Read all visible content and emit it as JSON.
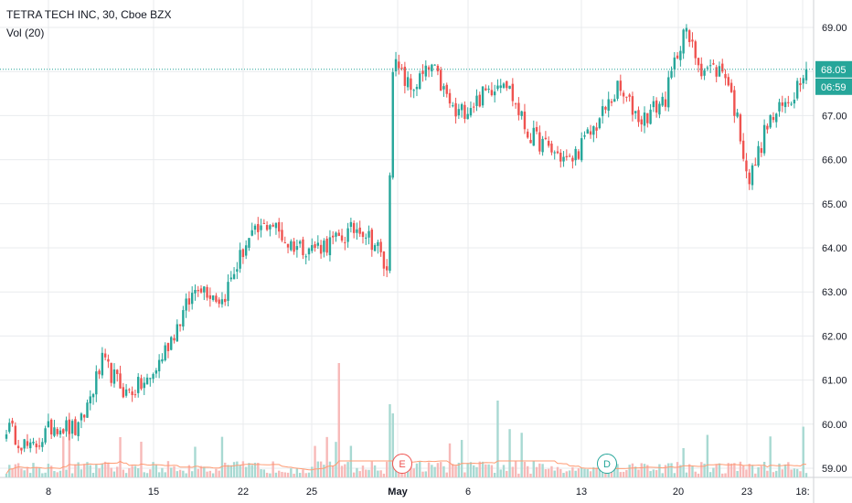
{
  "legend": {
    "title": "TETRA TECH INC, 30, Cboe BZX",
    "vol_label": "Vol (20)"
  },
  "colors": {
    "up": "#26a69a",
    "down": "#ef5350",
    "up_vol": "#a8d9d2",
    "down_vol": "#f7b9b8",
    "vol_ma": "#ff9b73",
    "grid": "#e9ebee",
    "price_line": "#26a69a"
  },
  "price_tag": {
    "price": "68.05",
    "countdown": "06:59"
  },
  "events": [
    {
      "label": "E",
      "x_label": "May",
      "color": "#ef5350"
    },
    {
      "label": "D",
      "x_label": "13",
      "color": "#26a69a"
    }
  ],
  "chart_data": {
    "type": "candlestick",
    "title": "TETRA TECH INC, 30, Cboe BZX",
    "interval": "30",
    "exchange": "Cboe BZX",
    "x_tick_labels": [
      "8",
      "15",
      "22",
      "25",
      "May",
      "6",
      "13",
      "20",
      "23",
      "18:"
    ],
    "y_tick_labels": [
      "59.00",
      "60.00",
      "61.00",
      "62.00",
      "63.00",
      "64.00",
      "65.00",
      "66.00",
      "67.00",
      "68.00",
      "69.00"
    ],
    "ylim": [
      58.8,
      69.2
    ],
    "last_price": 68.05,
    "grid": true,
    "volume_indicator": "Vol (20)",
    "series": [
      {
        "name": "",
        "anchors": [
          {
            "bar": 0,
            "close": 59.95
          },
          {
            "bar": 8,
            "close": 59.4
          },
          {
            "bar": 16,
            "close": 60.0
          },
          {
            "bar": 24,
            "close": 59.85
          },
          {
            "bar": 32,
            "close": 61.4
          },
          {
            "bar": 40,
            "close": 60.7
          },
          {
            "bar": 48,
            "close": 61.0
          },
          {
            "bar": 56,
            "close": 62.1
          },
          {
            "bar": 64,
            "close": 63.2
          },
          {
            "bar": 72,
            "close": 62.8
          },
          {
            "bar": 80,
            "close": 64.1
          },
          {
            "bar": 88,
            "close": 64.6
          },
          {
            "bar": 94,
            "close": 64.1
          },
          {
            "bar": 102,
            "close": 64.0
          },
          {
            "bar": 110,
            "close": 64.15
          },
          {
            "bar": 118,
            "close": 64.5
          },
          {
            "bar": 124,
            "close": 64.0
          },
          {
            "bar": 127,
            "close": 63.4
          },
          {
            "bar": 129,
            "close": 68.2
          },
          {
            "bar": 135,
            "close": 67.6
          },
          {
            "bar": 142,
            "close": 68.1
          },
          {
            "bar": 150,
            "close": 67.0
          },
          {
            "bar": 158,
            "close": 67.4
          },
          {
            "bar": 166,
            "close": 67.9
          },
          {
            "bar": 174,
            "close": 66.6
          },
          {
            "bar": 182,
            "close": 66.2
          },
          {
            "bar": 188,
            "close": 65.95
          },
          {
            "bar": 196,
            "close": 66.7
          },
          {
            "bar": 204,
            "close": 67.6
          },
          {
            "bar": 212,
            "close": 66.9
          },
          {
            "bar": 220,
            "close": 67.4
          },
          {
            "bar": 226,
            "close": 68.95
          },
          {
            "bar": 232,
            "close": 68.1
          },
          {
            "bar": 240,
            "close": 68.0
          },
          {
            "bar": 244,
            "close": 66.9
          },
          {
            "bar": 248,
            "close": 65.5
          },
          {
            "bar": 254,
            "close": 66.8
          },
          {
            "bar": 262,
            "close": 67.4
          },
          {
            "bar": 266,
            "close": 68.05
          }
        ]
      }
    ]
  }
}
